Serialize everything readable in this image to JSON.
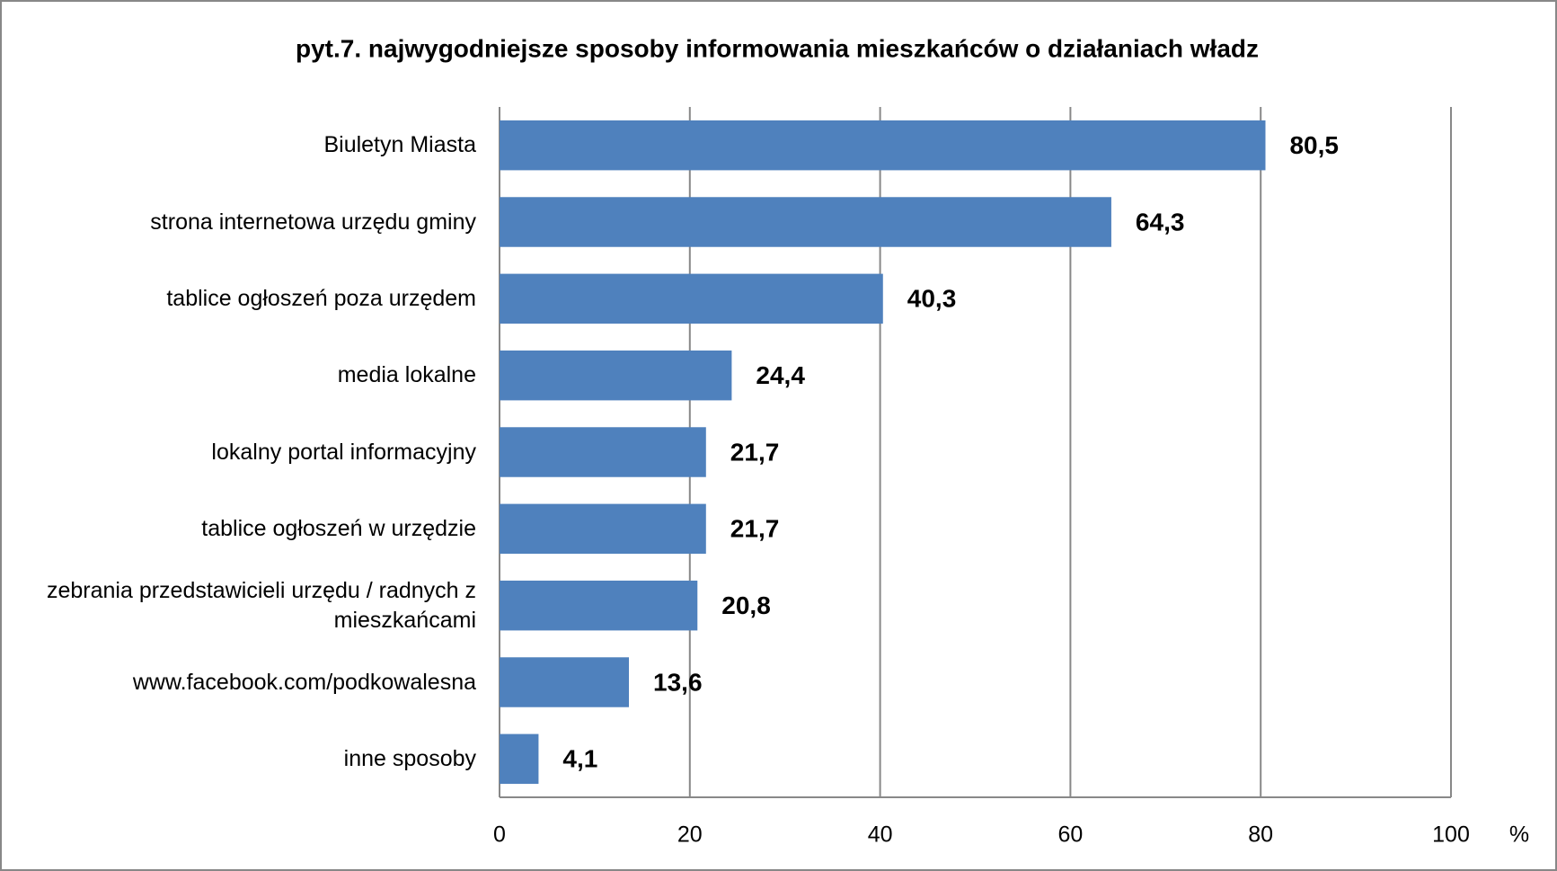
{
  "chart_data": {
    "type": "bar",
    "orientation": "horizontal",
    "title": "pyt.7. najwygodniejsze sposoby informowania mieszkańców o działaniach władz",
    "x_label": "%",
    "categories": [
      "Biuletyn Miasta",
      "strona internetowa urzędu gminy",
      "tablice ogłoszeń poza urzędem",
      "media lokalne",
      "lokalny portal informacyjny",
      "tablice ogłoszeń w urzędzie",
      "zebrania przedstawicieli urzędu / radnych z mieszkańcami",
      "www.facebook.com/podkowalesna",
      "inne sposoby"
    ],
    "values": [
      80.5,
      64.3,
      40.3,
      24.4,
      21.7,
      21.7,
      20.8,
      13.6,
      4.1
    ],
    "value_labels": [
      "80,5",
      "64,3",
      "40,3",
      "24,4",
      "21,7",
      "21,7",
      "20,8",
      "13,6",
      "4,1"
    ],
    "color": "#4f81bd",
    "xlim": [
      0,
      100
    ],
    "xticks": [
      0,
      20,
      40,
      60,
      80,
      100
    ],
    "grid": true
  }
}
